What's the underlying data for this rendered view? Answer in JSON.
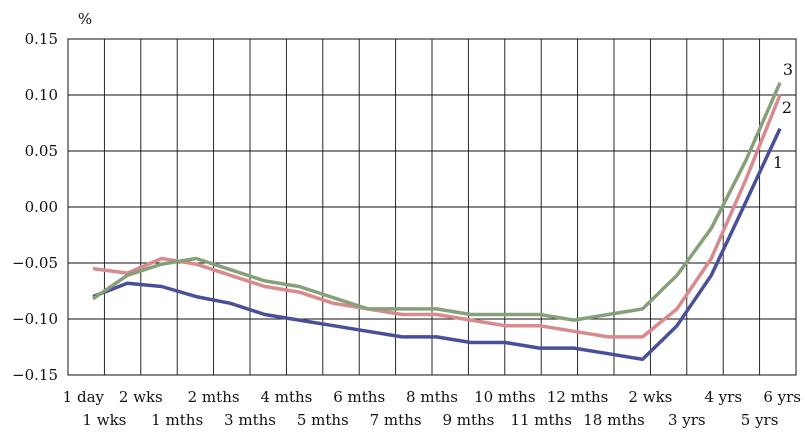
{
  "chart_data": {
    "type": "line",
    "y_unit": "%",
    "ylim": [
      -0.15,
      0.15
    ],
    "y_ticks": [
      "0.15",
      "0.10",
      "0.05",
      "0.00",
      "−0.05",
      "−0.10",
      "−0.15"
    ],
    "y_tick_values": [
      0.15,
      0.1,
      0.05,
      0.0,
      -0.05,
      -0.1,
      -0.15
    ],
    "categories": [
      "1 day",
      "1 wks",
      "2 wks",
      "1 mths",
      "2 mths",
      "3 mths",
      "4 mths",
      "5 mths",
      "6 mths",
      "7 mths",
      "8 mths",
      "9 mths",
      "10 mths",
      "11 mths",
      "12 mths",
      "18 mths",
      "2 wks",
      "3 yrs",
      "4 yrs",
      "5 yrs",
      "6 yrs"
    ],
    "grid": true,
    "series": [
      {
        "name": "1",
        "color": "#4a4f9a",
        "values": [
          -0.08,
          -0.068,
          -0.071,
          -0.08,
          -0.086,
          -0.096,
          -0.101,
          -0.106,
          -0.111,
          -0.116,
          -0.116,
          -0.121,
          -0.121,
          -0.126,
          -0.126,
          -0.131,
          -0.136,
          -0.106,
          -0.061,
          0.004,
          0.07
        ]
      },
      {
        "name": "2",
        "color": "#d98a8e",
        "values": [
          -0.055,
          -0.059,
          -0.046,
          -0.051,
          -0.061,
          -0.071,
          -0.076,
          -0.086,
          -0.091,
          -0.096,
          -0.096,
          -0.101,
          -0.106,
          -0.106,
          -0.111,
          -0.116,
          -0.116,
          -0.091,
          -0.046,
          0.024,
          0.1
        ]
      },
      {
        "name": "3",
        "color": "#86a07a",
        "values": [
          -0.082,
          -0.061,
          -0.051,
          -0.046,
          -0.056,
          -0.066,
          -0.071,
          -0.081,
          -0.091,
          -0.091,
          -0.091,
          -0.096,
          -0.096,
          -0.096,
          -0.101,
          -0.096,
          -0.091,
          -0.061,
          -0.019,
          0.041,
          0.111
        ]
      }
    ]
  }
}
